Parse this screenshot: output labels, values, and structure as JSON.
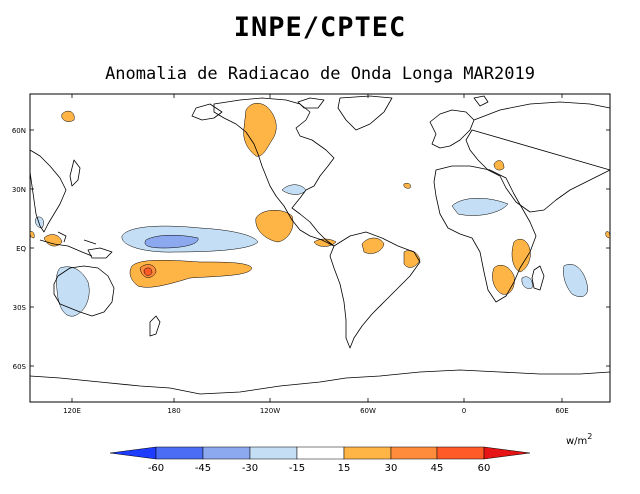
{
  "title": "INPE/CPTEC",
  "subtitle": "Anomalia de Radiacao de Onda Longa MAR2019",
  "lat_labels": [
    "60N",
    "30N",
    "EQ",
    "30S",
    "60S"
  ],
  "lon_labels": [
    "120E",
    "180",
    "120W",
    "60W",
    "0",
    "60E"
  ],
  "unit_label": "w/m",
  "unit_exponent": "2",
  "colorbar": {
    "ticks": [
      "-60",
      "-45",
      "-30",
      "-15",
      "15",
      "30",
      "45",
      "60"
    ],
    "colors": [
      "#1e3cff",
      "#4b6cf5",
      "#8ca9f0",
      "#c3def5",
      "#ffffff",
      "#ffb446",
      "#ff8c3c",
      "#ff5a28",
      "#e61414"
    ]
  }
}
